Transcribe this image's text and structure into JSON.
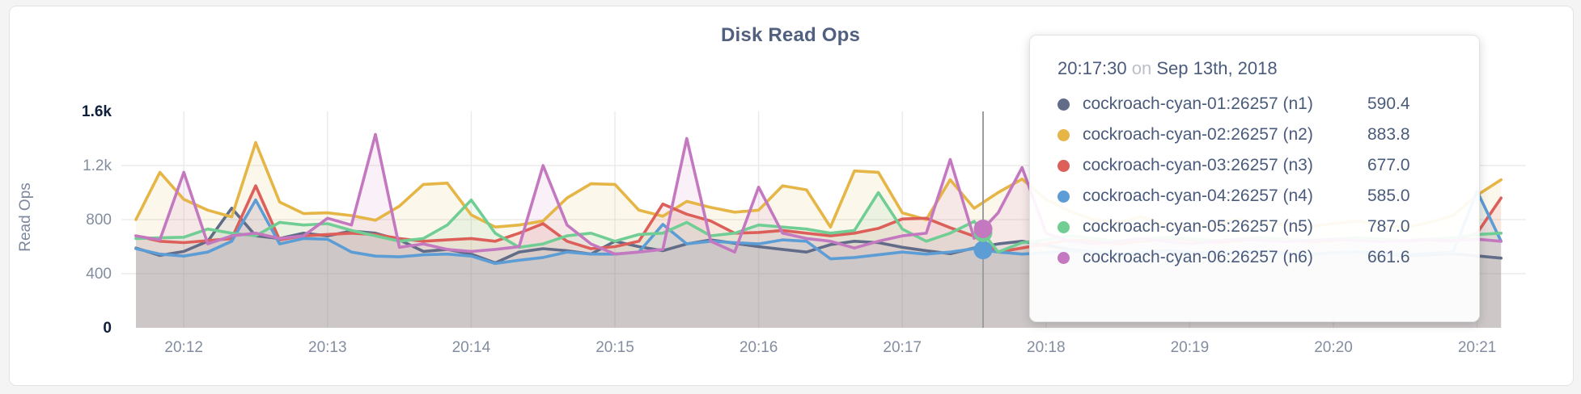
{
  "chart": {
    "title": "Disk Read Ops",
    "y_axis_label": "Read Ops"
  },
  "tooltip": {
    "time": "20:17:30",
    "conjunction": "on",
    "date": "Sep 13th, 2018",
    "rows": [
      {
        "label": "cockroach-cyan-01:26257 (n1)",
        "value": "590.4",
        "color": "#606c88"
      },
      {
        "label": "cockroach-cyan-02:26257 (n2)",
        "value": "883.8",
        "color": "#e5b546"
      },
      {
        "label": "cockroach-cyan-03:26257 (n3)",
        "value": "677.0",
        "color": "#dc5f5a"
      },
      {
        "label": "cockroach-cyan-04:26257 (n4)",
        "value": "585.0",
        "color": "#5c9dd5"
      },
      {
        "label": "cockroach-cyan-05:26257 (n5)",
        "value": "787.0",
        "color": "#70ce94"
      },
      {
        "label": "cockroach-cyan-06:26257 (n6)",
        "value": "661.6",
        "color": "#c478c0"
      }
    ]
  },
  "chart_data": {
    "type": "line",
    "title": "Disk Read Ops",
    "xlabel": "",
    "ylabel": "Read Ops",
    "ylim": [
      0,
      1600
    ],
    "grid": true,
    "x_start": "20:11:40",
    "x_step_sec": 10,
    "x_tick_labels": [
      "20:12",
      "20:13",
      "20:14",
      "20:15",
      "20:16",
      "20:17",
      "20:18",
      "20:19",
      "20:20",
      "20:21"
    ],
    "y_ticks": [
      {
        "label": "0",
        "value": 0,
        "emph": true
      },
      {
        "label": "400",
        "value": 400,
        "emph": false
      },
      {
        "label": "800",
        "value": 800,
        "emph": false
      },
      {
        "label": "1.2k",
        "value": 1200,
        "emph": false
      },
      {
        "label": "1.6k",
        "value": 1600,
        "emph": true
      }
    ],
    "hover": {
      "time": "20:17:30",
      "dot_series": [
        3,
        4,
        5
      ]
    },
    "series": [
      {
        "name": "cockroach-cyan-01:26257 (n1)",
        "color": "#606c88",
        "values": [
          590,
          535,
          565,
          640,
          885,
          680,
          660,
          700,
          680,
          715,
          700,
          650,
          565,
          580,
          545,
          480,
          560,
          585,
          570,
          545,
          640,
          600,
          570,
          620,
          650,
          625,
          600,
          580,
          560,
          615,
          640,
          630,
          595,
          570,
          548,
          590.4,
          620,
          640,
          610,
          580,
          560,
          545,
          555,
          570,
          560,
          548,
          556,
          565,
          552,
          540,
          556,
          562,
          548,
          532,
          540,
          548,
          532,
          515
        ]
      },
      {
        "name": "cockroach-cyan-02:26257 (n2)",
        "color": "#e5b546",
        "values": [
          800,
          1150,
          950,
          870,
          820,
          1370,
          930,
          845,
          850,
          830,
          795,
          900,
          1060,
          1070,
          835,
          745,
          760,
          790,
          960,
          1065,
          1060,
          870,
          825,
          935,
          890,
          855,
          870,
          1050,
          1020,
          745,
          1160,
          1150,
          850,
          800,
          1095,
          883.8,
          1000,
          1100,
          950,
          860,
          800,
          780,
          820,
          760,
          740,
          765,
          800,
          780,
          760,
          750,
          770,
          790,
          760,
          740,
          780,
          830,
          980,
          1095
        ]
      },
      {
        "name": "cockroach-cyan-03:26257 (n3)",
        "color": "#dc5f5a",
        "values": [
          680,
          640,
          630,
          645,
          660,
          1050,
          650,
          680,
          690,
          700,
          690,
          660,
          640,
          650,
          660,
          640,
          700,
          770,
          640,
          585,
          600,
          640,
          915,
          840,
          790,
          700,
          705,
          720,
          700,
          680,
          700,
          735,
          805,
          810,
          740,
          677,
          560,
          590,
          620,
          650,
          640,
          620,
          640,
          660,
          650,
          630,
          645,
          660,
          650,
          635,
          645,
          660,
          650,
          640,
          650,
          640,
          700,
          960
        ]
      },
      {
        "name": "cockroach-cyan-04:26257 (n4)",
        "color": "#5c9dd5",
        "values": [
          585,
          545,
          530,
          560,
          640,
          945,
          620,
          660,
          655,
          560,
          530,
          525,
          540,
          545,
          530,
          475,
          500,
          520,
          560,
          545,
          545,
          560,
          765,
          620,
          640,
          630,
          620,
          650,
          640,
          510,
          520,
          540,
          560,
          545,
          560,
          585,
          560,
          545,
          555,
          570,
          560,
          545,
          555,
          565,
          555,
          545,
          555,
          560,
          550,
          545,
          555,
          560,
          550,
          540,
          550,
          560,
          1010,
          640
        ]
      },
      {
        "name": "cockroach-cyan-05:26257 (n5)",
        "color": "#70ce94",
        "values": [
          660,
          665,
          670,
          730,
          700,
          680,
          780,
          760,
          770,
          720,
          680,
          640,
          660,
          760,
          945,
          700,
          595,
          620,
          680,
          700,
          640,
          690,
          700,
          780,
          680,
          700,
          760,
          745,
          730,
          700,
          720,
          1000,
          730,
          640,
          700,
          787,
          560,
          630,
          650,
          680,
          660,
          640,
          655,
          670,
          660,
          645,
          655,
          665,
          655,
          645,
          655,
          665,
          655,
          645,
          655,
          665,
          690,
          700
        ]
      },
      {
        "name": "cockroach-cyan-06:26257 (n6)",
        "color": "#c478c0",
        "values": [
          680,
          650,
          1150,
          620,
          680,
          700,
          660,
          680,
          810,
          760,
          1430,
          595,
          620,
          580,
          565,
          580,
          600,
          1200,
          760,
          620,
          545,
          560,
          580,
          1400,
          640,
          560,
          1040,
          700,
          660,
          640,
          590,
          640,
          680,
          700,
          1245,
          661.6,
          850,
          1185,
          700,
          640,
          620,
          640,
          660,
          640,
          620,
          640,
          655,
          645,
          635,
          645,
          655,
          645,
          635,
          645,
          655,
          645,
          655,
          640
        ]
      }
    ]
  }
}
